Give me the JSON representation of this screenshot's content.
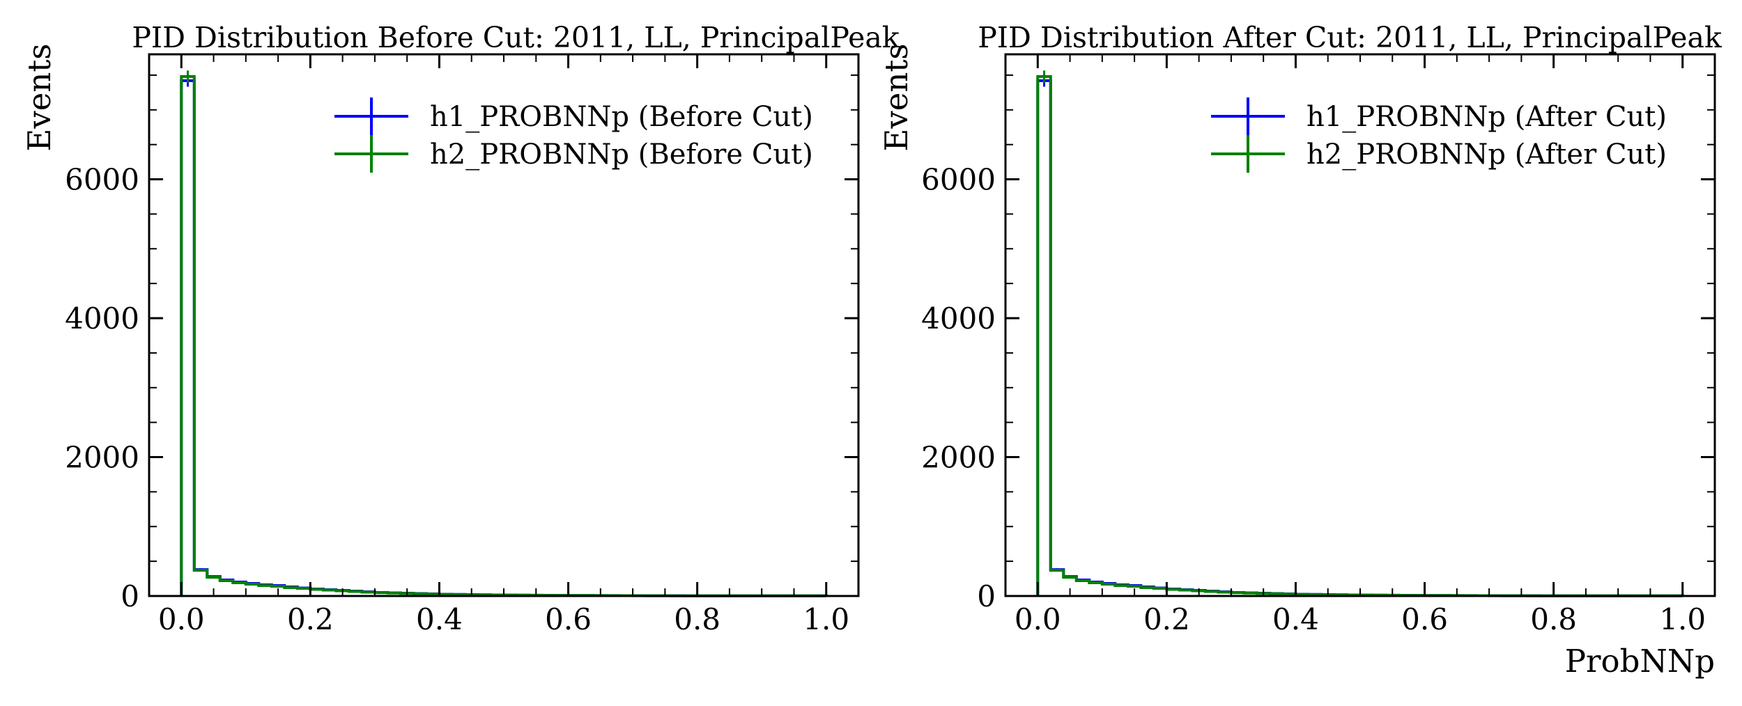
{
  "figure": {
    "colors": {
      "h1": "#0000ff",
      "h2": "#008000",
      "frame": "#000000"
    }
  },
  "chart_data": [
    {
      "type": "histogram",
      "title": "PID Distribution Before Cut: 2011, LL, PrincipalPeak",
      "xlabel": "",
      "ylabel": "Events",
      "xlim": [
        -0.05,
        1.05
      ],
      "ylim": [
        0,
        7800
      ],
      "xticks": [
        "0.0",
        "0.2",
        "0.4",
        "0.6",
        "0.8",
        "1.0"
      ],
      "yticks": [
        "0",
        "2000",
        "4000",
        "6000"
      ],
      "bin_edges": [
        0,
        0.02,
        0.04,
        0.06,
        0.08,
        0.1,
        0.12,
        0.14,
        0.16,
        0.18,
        0.2,
        0.22,
        0.24,
        0.26,
        0.28,
        0.3,
        0.32,
        0.34,
        0.36,
        0.38,
        0.4,
        0.42,
        0.44,
        0.46,
        0.48,
        0.5,
        0.52,
        0.54,
        0.56,
        0.58,
        0.6,
        0.62,
        0.64,
        0.66,
        0.68,
        0.7,
        0.72,
        0.74,
        0.76,
        0.78,
        0.8,
        0.82,
        0.84,
        0.86,
        0.88,
        0.9,
        0.92,
        0.94,
        0.96,
        0.98,
        1.0
      ],
      "legend_position": "top-right",
      "series": [
        {
          "name": "h1_PROBNNp (Before Cut)",
          "color": "#0000ff",
          "values": [
            7420,
            380,
            280,
            230,
            200,
            180,
            160,
            150,
            130,
            115,
            100,
            90,
            80,
            70,
            60,
            50,
            45,
            40,
            35,
            30,
            25,
            22,
            20,
            18,
            15,
            14,
            12,
            11,
            10,
            9,
            8,
            7,
            6,
            6,
            5,
            5,
            4,
            4,
            4,
            3,
            3,
            3,
            3,
            2,
            2,
            2,
            2,
            2,
            2,
            2
          ]
        },
        {
          "name": "h2_PROBNNp (Before Cut)",
          "color": "#008000",
          "values": [
            7480,
            370,
            270,
            220,
            190,
            170,
            150,
            140,
            120,
            110,
            95,
            85,
            75,
            65,
            55,
            48,
            42,
            38,
            33,
            28,
            24,
            21,
            19,
            17,
            14,
            13,
            11,
            10,
            9,
            8,
            7,
            7,
            6,
            5,
            5,
            4,
            4,
            4,
            3,
            3,
            3,
            3,
            2,
            2,
            2,
            2,
            2,
            2,
            2,
            2
          ]
        }
      ]
    },
    {
      "type": "histogram",
      "title": "PID Distribution After Cut: 2011, LL, PrincipalPeak",
      "xlabel": "ProbNNp",
      "ylabel": "Events",
      "xlim": [
        -0.05,
        1.05
      ],
      "ylim": [
        0,
        7800
      ],
      "xticks": [
        "0.0",
        "0.2",
        "0.4",
        "0.6",
        "0.8",
        "1.0"
      ],
      "yticks": [
        "0",
        "2000",
        "4000",
        "6000"
      ],
      "bin_edges": [
        0,
        0.02,
        0.04,
        0.06,
        0.08,
        0.1,
        0.12,
        0.14,
        0.16,
        0.18,
        0.2,
        0.22,
        0.24,
        0.26,
        0.28,
        0.3,
        0.32,
        0.34,
        0.36,
        0.38,
        0.4,
        0.42,
        0.44,
        0.46,
        0.48,
        0.5,
        0.52,
        0.54,
        0.56,
        0.58,
        0.6,
        0.62,
        0.64,
        0.66,
        0.68,
        0.7,
        0.72,
        0.74,
        0.76,
        0.78,
        0.8,
        0.82,
        0.84,
        0.86,
        0.88,
        0.9,
        0.92,
        0.94,
        0.96,
        0.98,
        1.0
      ],
      "legend_position": "top-right",
      "series": [
        {
          "name": "h1_PROBNNp (After Cut)",
          "color": "#0000ff",
          "values": [
            7420,
            380,
            280,
            230,
            200,
            180,
            160,
            150,
            130,
            115,
            100,
            90,
            80,
            70,
            60,
            50,
            45,
            40,
            35,
            30,
            25,
            22,
            20,
            18,
            15,
            14,
            12,
            11,
            10,
            9,
            8,
            7,
            6,
            6,
            5,
            5,
            4,
            4,
            4,
            3,
            3,
            3,
            3,
            2,
            2,
            2,
            2,
            2,
            2,
            2
          ]
        },
        {
          "name": "h2_PROBNNp (After Cut)",
          "color": "#008000",
          "values": [
            7480,
            370,
            270,
            220,
            190,
            170,
            150,
            140,
            120,
            110,
            95,
            85,
            75,
            65,
            55,
            48,
            42,
            38,
            33,
            28,
            24,
            21,
            19,
            17,
            14,
            13,
            11,
            10,
            9,
            8,
            7,
            7,
            6,
            5,
            5,
            4,
            4,
            4,
            3,
            3,
            3,
            3,
            2,
            2,
            2,
            2,
            2,
            2,
            2,
            2
          ]
        }
      ]
    }
  ]
}
